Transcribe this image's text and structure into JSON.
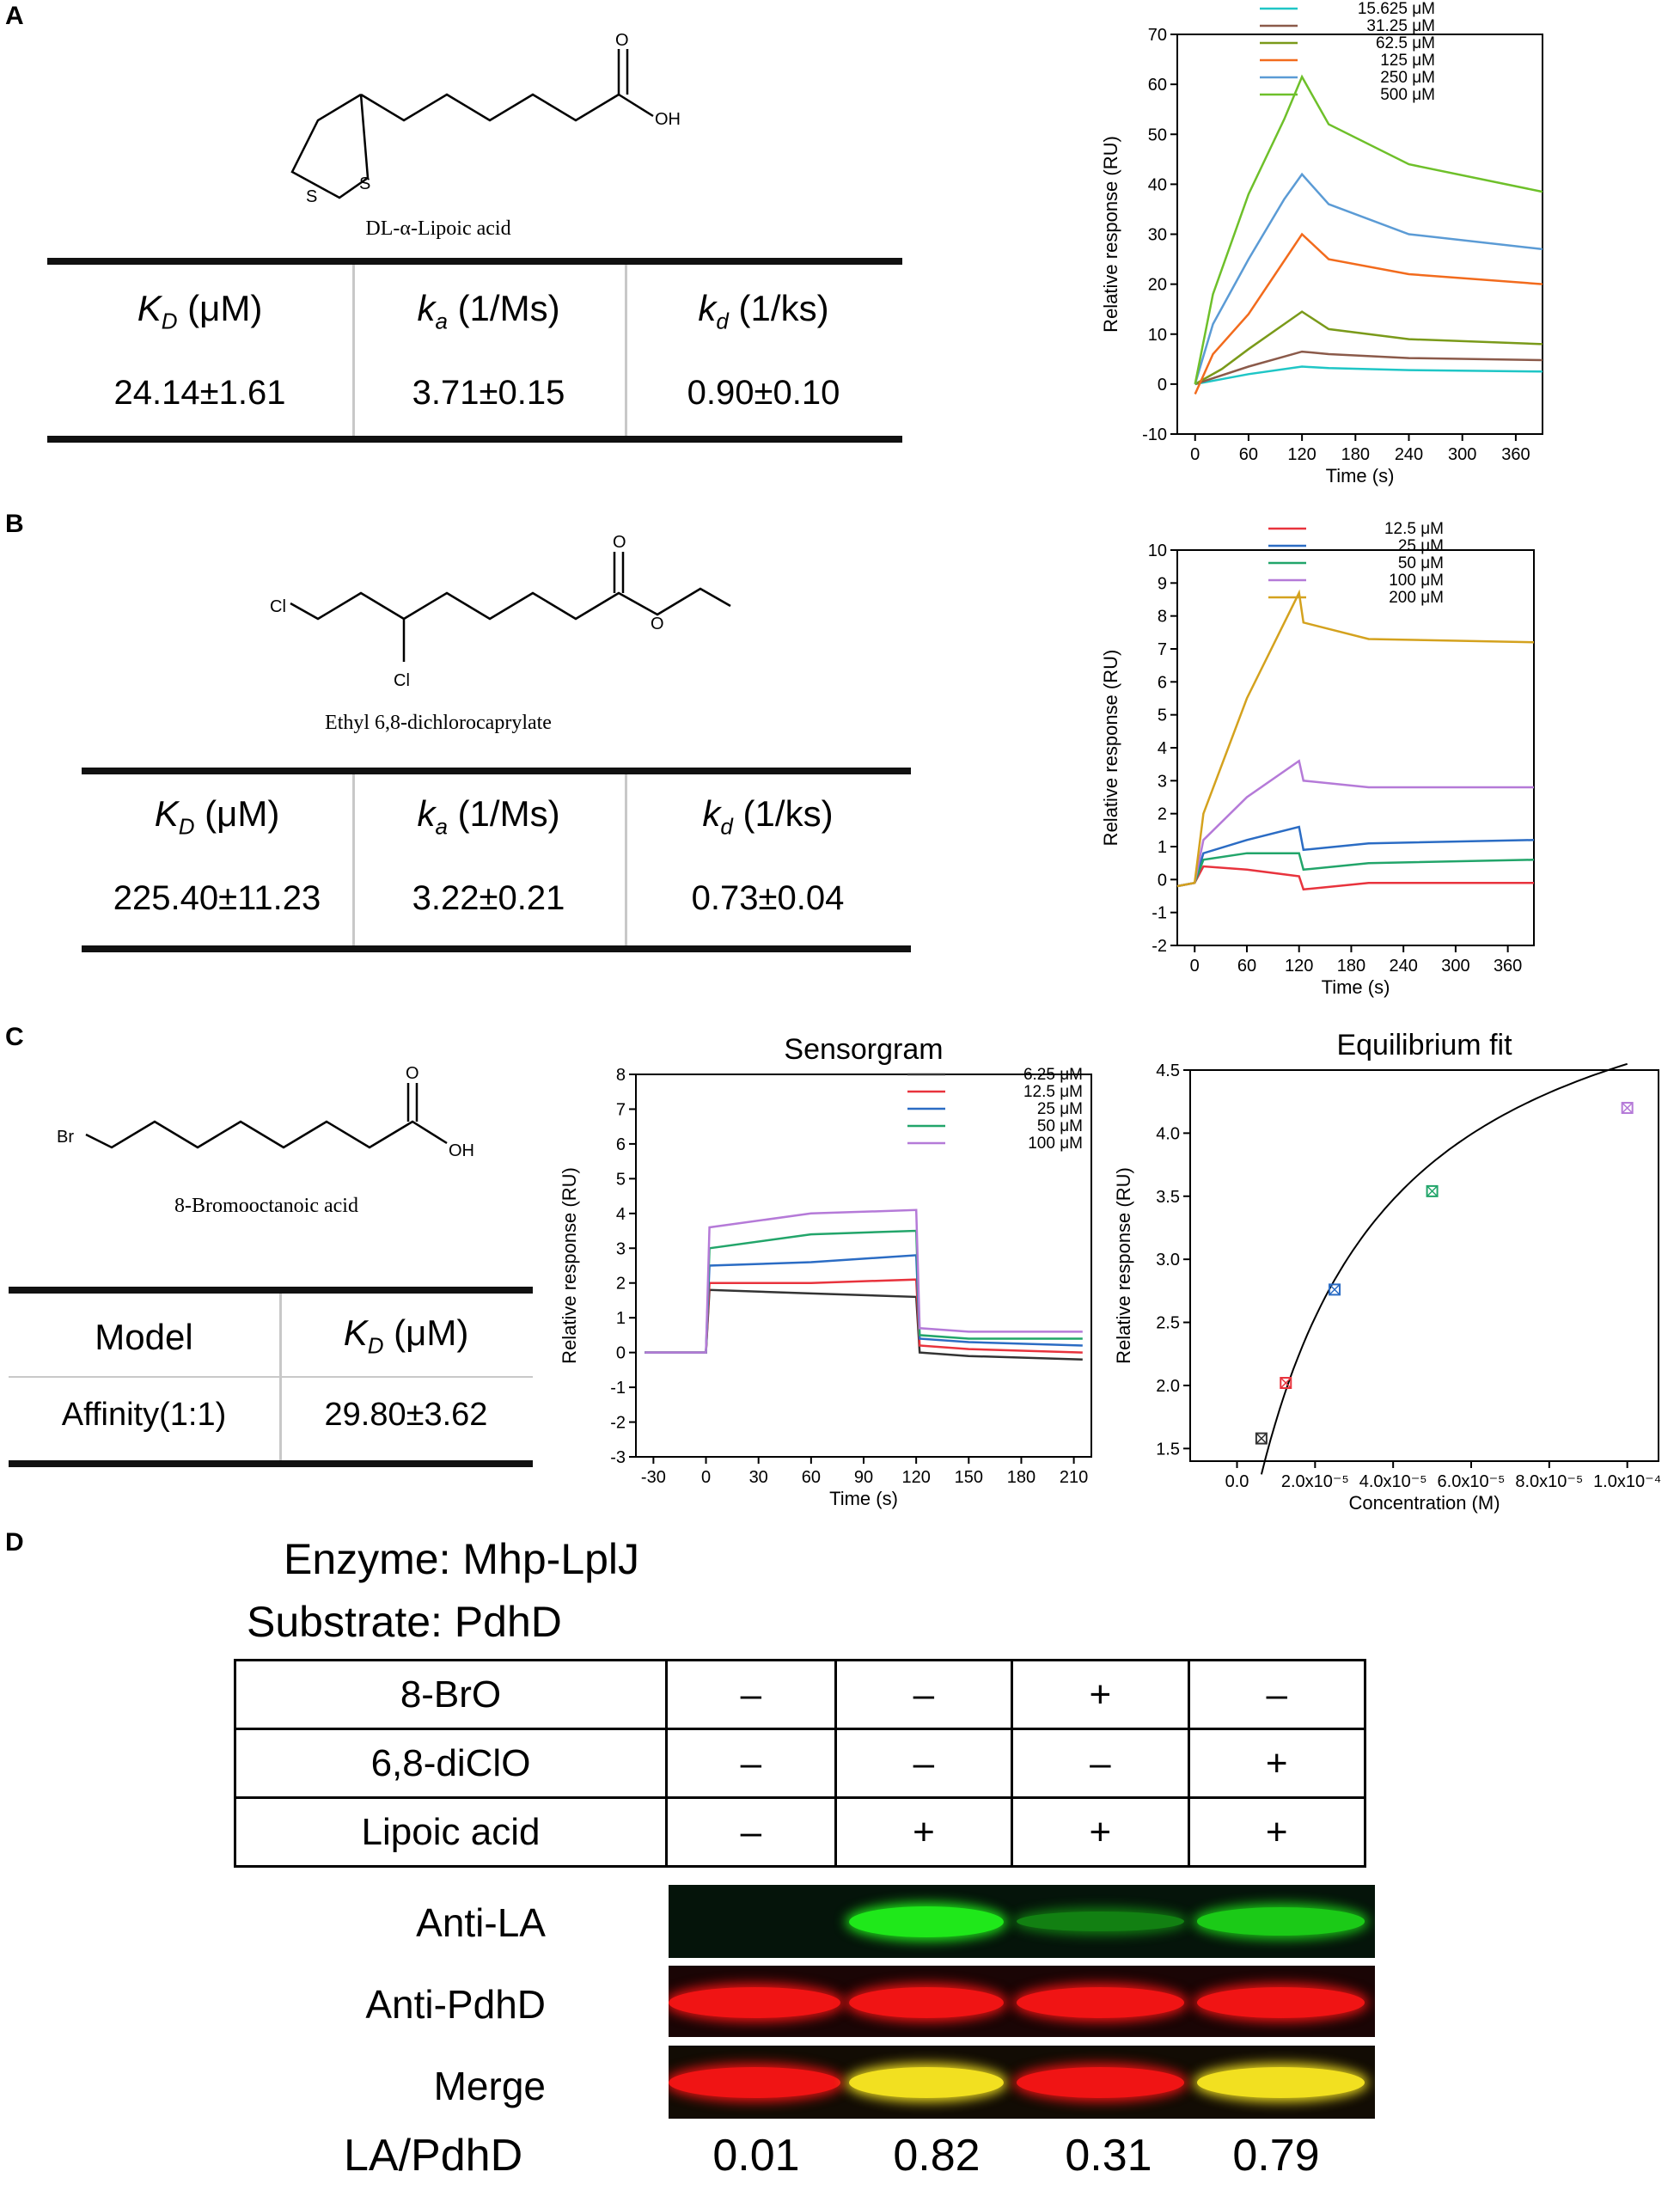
{
  "panelA": {
    "label": "A",
    "molecule": {
      "name": "DL-α-Lipoic acid",
      "atoms": {
        "s1": "S",
        "s2": "S",
        "o": "O",
        "oh": "OH"
      }
    },
    "table": {
      "h1_sym": "K",
      "h1_sub": "D",
      "h1_unit": " (μM)",
      "h2_sym": "k",
      "h2_sub": "a",
      "h2_unit": " (1/Ms)",
      "h3_sym": "k",
      "h3_sub": "d",
      "h3_unit": " (1/ks)",
      "v1": "24.14±1.61",
      "v2": "3.71±0.15",
      "v3": "0.90±0.10"
    }
  },
  "panelB": {
    "label": "B",
    "molecule": {
      "name": "Ethyl 6,8-dichlorocaprylate",
      "atoms": {
        "cl1": "Cl",
        "cl2": "Cl",
        "o1": "O",
        "o2": "O"
      }
    },
    "table": {
      "h1_sym": "K",
      "h1_sub": "D",
      "h1_unit": " (μM)",
      "h2_sym": "k",
      "h2_sub": "a",
      "h2_unit": " (1/Ms)",
      "h3_sym": "k",
      "h3_sub": "d",
      "h3_unit": " (1/ks)",
      "v1": "225.40±11.23",
      "v2": "3.22±0.21",
      "v3": "0.73±0.04"
    }
  },
  "panelC": {
    "label": "C",
    "molecule": {
      "name": "8-Bromooctanoic acid",
      "atoms": {
        "br": "Br",
        "o": "O",
        "oh": "OH"
      }
    },
    "table": {
      "h1": "Model",
      "h2_sym": "K",
      "h2_sub": "D",
      "h2_unit": " (μM)",
      "v1": "Affinity(1:1)",
      "v2": "29.80±3.62"
    }
  },
  "panelD": {
    "label": "D",
    "enzyme": "Enzyme: Mhp-LplJ",
    "substrate": "Substrate: PdhD",
    "rows": [
      {
        "label": "8-BrO",
        "signs": [
          "–",
          "–",
          "+",
          "–"
        ]
      },
      {
        "label": "6,8-diClO",
        "signs": [
          "–",
          "–",
          "–",
          "+"
        ]
      },
      {
        "label": "Lipoic acid",
        "signs": [
          "–",
          "+",
          "+",
          "+"
        ]
      }
    ],
    "blots": [
      {
        "label": "Anti-LA",
        "intensity": [
          0.0,
          1.0,
          0.3,
          0.8
        ]
      },
      {
        "label": "Anti-PdhD",
        "intensity": [
          1.0,
          1.0,
          1.0,
          1.0
        ]
      },
      {
        "label": "Merge",
        "intensity": [
          1.0,
          1.0,
          1.0,
          1.0
        ]
      }
    ],
    "ratio_label": "LA/PdhD",
    "ratios": [
      "0.01",
      "0.82",
      "0.31",
      "0.79"
    ],
    "colors": {
      "la": "#1fe81a",
      "pdhd": "#f01414",
      "merge_yellow": "#f2e020"
    }
  },
  "chart_data": [
    {
      "id": "chartA",
      "type": "line",
      "title": "",
      "xlabel": "Time (s)",
      "ylabel": "Relative response (RU)",
      "xlim": [
        -20,
        390
      ],
      "ylim": [
        -10,
        70
      ],
      "xticks": [
        0,
        60,
        120,
        180,
        240,
        300,
        360
      ],
      "yticks": [
        -10,
        0,
        10,
        20,
        30,
        40,
        50,
        60,
        70
      ],
      "legend_position": "top-right",
      "series": [
        {
          "name": "15.625 μM",
          "color": "#1fc6c6",
          "points": [
            [
              0,
              0
            ],
            [
              60,
              2
            ],
            [
              120,
              3.5
            ],
            [
              150,
              3.2
            ],
            [
              240,
              2.8
            ],
            [
              390,
              2.5
            ]
          ]
        },
        {
          "name": "31.25 μM",
          "color": "#8b5a4a",
          "points": [
            [
              0,
              0
            ],
            [
              60,
              3.5
            ],
            [
              120,
              6.5
            ],
            [
              150,
              6
            ],
            [
              240,
              5.2
            ],
            [
              390,
              4.8
            ]
          ]
        },
        {
          "name": "62.5 μM",
          "color": "#7a9a1a",
          "points": [
            [
              0,
              0
            ],
            [
              30,
              3
            ],
            [
              60,
              7
            ],
            [
              100,
              12
            ],
            [
              120,
              14.5
            ],
            [
              150,
              11
            ],
            [
              240,
              9
            ],
            [
              390,
              8
            ]
          ]
        },
        {
          "name": "125 μM",
          "color": "#f26b1d",
          "points": [
            [
              0,
              -2
            ],
            [
              20,
              6
            ],
            [
              60,
              14
            ],
            [
              90,
              22
            ],
            [
              120,
              30
            ],
            [
              150,
              25
            ],
            [
              240,
              22
            ],
            [
              390,
              20
            ]
          ]
        },
        {
          "name": "250 μM",
          "color": "#5b9bd5",
          "points": [
            [
              0,
              0
            ],
            [
              20,
              12
            ],
            [
              60,
              25
            ],
            [
              100,
              37
            ],
            [
              120,
              42
            ],
            [
              150,
              36
            ],
            [
              240,
              30
            ],
            [
              390,
              27
            ]
          ]
        },
        {
          "name": "500 μM",
          "color": "#6ec02a",
          "points": [
            [
              0,
              0
            ],
            [
              20,
              18
            ],
            [
              60,
              38
            ],
            [
              100,
              53
            ],
            [
              120,
              61.5
            ],
            [
              150,
              52
            ],
            [
              240,
              44
            ],
            [
              390,
              38.5
            ]
          ]
        }
      ]
    },
    {
      "id": "chartB",
      "type": "line",
      "title": "",
      "xlabel": "Time (s)",
      "ylabel": "Relative response (RU)",
      "xlim": [
        -20,
        390
      ],
      "ylim": [
        -2,
        10
      ],
      "xticks": [
        0,
        60,
        120,
        180,
        240,
        300,
        360
      ],
      "yticks": [
        -2,
        -1,
        0,
        1,
        2,
        3,
        4,
        5,
        6,
        7,
        8,
        9,
        10
      ],
      "legend_position": "top-right",
      "series": [
        {
          "name": "12.5 μM",
          "color": "#e8333d",
          "points": [
            [
              -20,
              -0.2
            ],
            [
              0,
              -0.1
            ],
            [
              10,
              0.4
            ],
            [
              60,
              0.3
            ],
            [
              120,
              0.1
            ],
            [
              125,
              -0.3
            ],
            [
              200,
              -0.1
            ],
            [
              390,
              -0.1
            ]
          ]
        },
        {
          "name": "25 μM",
          "color": "#2b6cc4",
          "points": [
            [
              -20,
              -0.2
            ],
            [
              0,
              -0.1
            ],
            [
              10,
              0.8
            ],
            [
              60,
              1.2
            ],
            [
              120,
              1.6
            ],
            [
              125,
              0.9
            ],
            [
              200,
              1.1
            ],
            [
              390,
              1.2
            ]
          ]
        },
        {
          "name": "50 μM",
          "color": "#22a56a",
          "points": [
            [
              -20,
              -0.2
            ],
            [
              0,
              -0.1
            ],
            [
              10,
              0.6
            ],
            [
              60,
              0.8
            ],
            [
              120,
              0.8
            ],
            [
              125,
              0.3
            ],
            [
              200,
              0.5
            ],
            [
              390,
              0.6
            ]
          ]
        },
        {
          "name": "100 μM",
          "color": "#b57ad8",
          "points": [
            [
              -20,
              -0.2
            ],
            [
              0,
              -0.1
            ],
            [
              10,
              1.2
            ],
            [
              60,
              2.5
            ],
            [
              120,
              3.6
            ],
            [
              125,
              3.0
            ],
            [
              200,
              2.8
            ],
            [
              390,
              2.8
            ]
          ]
        },
        {
          "name": "200 μM",
          "color": "#d4a21e",
          "points": [
            [
              -20,
              -0.2
            ],
            [
              0,
              -0.1
            ],
            [
              10,
              2
            ],
            [
              60,
              5.5
            ],
            [
              120,
              8.7
            ],
            [
              125,
              7.8
            ],
            [
              200,
              7.3
            ],
            [
              390,
              7.2
            ]
          ]
        }
      ]
    },
    {
      "id": "chartC",
      "type": "line",
      "title": "Sensorgram",
      "xlabel": "Time (s)",
      "ylabel": "Relative response (RU)",
      "xlim": [
        -40,
        220
      ],
      "ylim": [
        -3,
        8
      ],
      "xticks": [
        -30,
        0,
        30,
        60,
        90,
        120,
        150,
        180,
        210
      ],
      "yticks": [
        -3,
        -2,
        -1,
        0,
        1,
        2,
        3,
        4,
        5,
        6,
        7,
        8
      ],
      "legend_position": "top-right",
      "series": [
        {
          "name": "6.25 μM",
          "color": "#333333",
          "points": [
            [
              -35,
              0
            ],
            [
              0,
              0
            ],
            [
              2,
              1.8
            ],
            [
              60,
              1.7
            ],
            [
              120,
              1.6
            ],
            [
              122,
              0
            ],
            [
              150,
              -0.1
            ],
            [
              215,
              -0.2
            ]
          ]
        },
        {
          "name": "12.5 μM",
          "color": "#e8333d",
          "points": [
            [
              -35,
              0
            ],
            [
              0,
              0
            ],
            [
              2,
              2.0
            ],
            [
              60,
              2.0
            ],
            [
              120,
              2.1
            ],
            [
              122,
              0.2
            ],
            [
              150,
              0.1
            ],
            [
              215,
              0.0
            ]
          ]
        },
        {
          "name": "25 μM",
          "color": "#2b6cc4",
          "points": [
            [
              -35,
              0
            ],
            [
              0,
              0
            ],
            [
              2,
              2.5
            ],
            [
              60,
              2.6
            ],
            [
              120,
              2.8
            ],
            [
              122,
              0.4
            ],
            [
              150,
              0.3
            ],
            [
              215,
              0.2
            ]
          ]
        },
        {
          "name": "50 μM",
          "color": "#22a56a",
          "points": [
            [
              -35,
              0
            ],
            [
              0,
              0
            ],
            [
              2,
              3.0
            ],
            [
              60,
              3.4
            ],
            [
              120,
              3.5
            ],
            [
              122,
              0.5
            ],
            [
              150,
              0.4
            ],
            [
              215,
              0.4
            ]
          ]
        },
        {
          "name": "100 μM",
          "color": "#b57ad8",
          "points": [
            [
              -35,
              0
            ],
            [
              0,
              0
            ],
            [
              2,
              3.6
            ],
            [
              60,
              4.0
            ],
            [
              120,
              4.1
            ],
            [
              122,
              0.7
            ],
            [
              150,
              0.6
            ],
            [
              215,
              0.6
            ]
          ]
        }
      ]
    },
    {
      "id": "chartD",
      "type": "scatter",
      "title": "Equilibrium fit",
      "xlabel": "Concentration (M)",
      "ylabel": "Relative response (RU)",
      "xlim": [
        -1.2e-05,
        0.000108
      ],
      "ylim": [
        1.4,
        4.5
      ],
      "xticks": [
        0,
        2e-05,
        4e-05,
        6e-05,
        8e-05,
        0.0001
      ],
      "xticklabels": [
        "0.0",
        "2.0x10⁻⁵",
        "4.0x10⁻⁵",
        "6.0x10⁻⁵",
        "8.0x10⁻⁵",
        "1.0x10⁻⁴"
      ],
      "yticks": [
        1.5,
        2.0,
        2.5,
        3.0,
        3.5,
        4.0,
        4.5
      ],
      "yticklabels": [
        "1.5",
        "2.0",
        "2.5",
        "3.0",
        "3.5",
        "4.0",
        "4.5"
      ],
      "points": [
        {
          "x": 6.25e-06,
          "y": 1.58,
          "color": "#333333"
        },
        {
          "x": 1.25e-05,
          "y": 2.02,
          "color": "#e8333d"
        },
        {
          "x": 2.5e-05,
          "y": 2.76,
          "color": "#2b6cc4"
        },
        {
          "x": 5e-05,
          "y": 3.54,
          "color": "#22a56a"
        },
        {
          "x": 0.0001,
          "y": 4.2,
          "color": "#b57ad8"
        }
      ],
      "fit": {
        "kd": 2.98e-05,
        "rmax": 5.45,
        "offset": 0.35
      }
    }
  ]
}
